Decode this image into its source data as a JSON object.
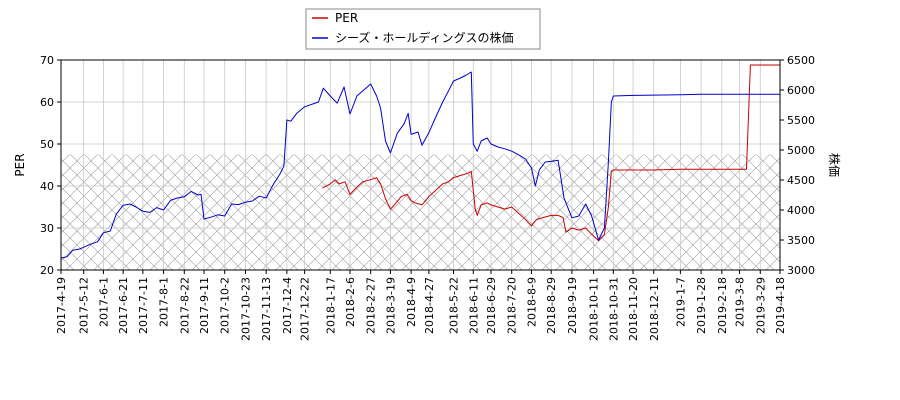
{
  "chart_data": {
    "type": "line",
    "legend": {
      "placement": "top-center",
      "entries": [
        {
          "label": "PER",
          "color": "#cc0000"
        },
        {
          "label": "シーズ・ホールディングスの株価",
          "color": "#0000cc"
        }
      ]
    },
    "ylabel_left": "PER",
    "ylabel_right": "株価",
    "ylim_left": [
      20,
      70
    ],
    "ylim_right": [
      3000,
      6500
    ],
    "yticks_left": [
      20,
      30,
      40,
      50,
      60,
      70
    ],
    "yticks_right": [
      3000,
      3500,
      4000,
      4500,
      5000,
      5500,
      6000,
      6500
    ],
    "xlim": [
      "2017-04-19",
      "2019-04-18"
    ],
    "xtick_labels": [
      "2017-4-19",
      "2017-5-12",
      "2017-6-1",
      "2017-6-21",
      "2017-7-11",
      "2017-8-1",
      "2017-8-22",
      "2017-9-11",
      "2017-10-2",
      "2017-10-23",
      "2017-11-13",
      "2017-12-4",
      "2017-12-22",
      "2018-1-17",
      "2018-2-6",
      "2018-2-27",
      "2018-3-19",
      "2018-4-9",
      "2018-4-27",
      "2018-5-22",
      "2018-6-11",
      "2018-6-29",
      "2018-7-20",
      "2018-8-9",
      "2018-8-29",
      "2018-9-19",
      "2018-10-11",
      "2018-10-31",
      "2018-11-20",
      "2018-12-11",
      "2019-1-7",
      "2019-1-28",
      "2019-2-18",
      "2019-3-8",
      "2019-3-29",
      "2019-4-18"
    ],
    "xtick_dates": [
      "2017-04-19",
      "2017-05-12",
      "2017-06-01",
      "2017-06-21",
      "2017-07-11",
      "2017-08-01",
      "2017-08-22",
      "2017-09-11",
      "2017-10-02",
      "2017-10-23",
      "2017-11-13",
      "2017-12-04",
      "2017-12-22",
      "2018-01-17",
      "2018-02-06",
      "2018-02-27",
      "2018-03-19",
      "2018-04-09",
      "2018-04-27",
      "2018-05-22",
      "2018-06-11",
      "2018-06-29",
      "2018-07-20",
      "2018-08-09",
      "2018-08-29",
      "2018-09-19",
      "2018-10-11",
      "2018-10-31",
      "2018-11-20",
      "2018-12-11",
      "2019-01-07",
      "2019-01-28",
      "2019-02-18",
      "2019-03-08",
      "2019-03-29",
      "2019-04-18"
    ],
    "grid": true,
    "hatched_band_left_axis": [
      20,
      47.5
    ],
    "series": [
      {
        "name": "PER",
        "axis": "left",
        "color": "#cc0000",
        "points": [
          [
            "2018-01-09",
            39.5
          ],
          [
            "2018-01-17",
            40.5
          ],
          [
            "2018-01-22",
            41.5
          ],
          [
            "2018-01-26",
            40.5
          ],
          [
            "2018-02-01",
            41.0
          ],
          [
            "2018-02-06",
            38.0
          ],
          [
            "2018-02-12",
            39.5
          ],
          [
            "2018-02-19",
            41.0
          ],
          [
            "2018-02-27",
            41.5
          ],
          [
            "2018-03-05",
            42.0
          ],
          [
            "2018-03-09",
            40.5
          ],
          [
            "2018-03-14",
            37.0
          ],
          [
            "2018-03-19",
            34.5
          ],
          [
            "2018-03-23",
            35.5
          ],
          [
            "2018-03-30",
            37.5
          ],
          [
            "2018-04-05",
            38.0
          ],
          [
            "2018-04-09",
            36.5
          ],
          [
            "2018-04-13",
            36.0
          ],
          [
            "2018-04-20",
            35.5
          ],
          [
            "2018-04-27",
            37.5
          ],
          [
            "2018-05-04",
            39.0
          ],
          [
            "2018-05-11",
            40.5
          ],
          [
            "2018-05-17",
            41.0
          ],
          [
            "2018-05-22",
            42.0
          ],
          [
            "2018-05-29",
            42.5
          ],
          [
            "2018-06-05",
            43.0
          ],
          [
            "2018-06-09",
            43.5
          ],
          [
            "2018-06-13",
            34.5
          ],
          [
            "2018-06-15",
            33.0
          ],
          [
            "2018-06-19",
            35.5
          ],
          [
            "2018-06-25",
            36.0
          ],
          [
            "2018-06-29",
            35.5
          ],
          [
            "2018-07-06",
            35.0
          ],
          [
            "2018-07-13",
            34.5
          ],
          [
            "2018-07-20",
            35.0
          ],
          [
            "2018-07-27",
            33.5
          ],
          [
            "2018-08-03",
            32.0
          ],
          [
            "2018-08-09",
            30.5
          ],
          [
            "2018-08-14",
            32.0
          ],
          [
            "2018-08-21",
            32.5
          ],
          [
            "2018-08-29",
            33.0
          ],
          [
            "2018-09-05",
            33.0
          ],
          [
            "2018-09-10",
            32.5
          ],
          [
            "2018-09-13",
            29.0
          ],
          [
            "2018-09-19",
            30.0
          ],
          [
            "2018-09-26",
            29.5
          ],
          [
            "2018-10-03",
            30.0
          ],
          [
            "2018-10-09",
            28.5
          ],
          [
            "2018-10-16",
            27.0
          ],
          [
            "2018-10-22",
            28.5
          ],
          [
            "2018-10-26",
            35.0
          ],
          [
            "2018-10-29",
            43.5
          ],
          [
            "2018-10-31",
            43.8
          ],
          [
            "2018-11-20",
            43.8
          ],
          [
            "2018-12-11",
            43.8
          ],
          [
            "2019-01-07",
            44.0
          ],
          [
            "2019-01-28",
            44.0
          ],
          [
            "2019-02-18",
            44.0
          ],
          [
            "2019-03-08",
            44.0
          ],
          [
            "2019-03-15",
            44.0
          ],
          [
            "2019-03-19",
            68.8
          ],
          [
            "2019-03-29",
            68.8
          ],
          [
            "2019-04-18",
            68.8
          ]
        ]
      },
      {
        "name": "シーズ・ホールディングスの株価",
        "axis": "right",
        "color": "#0000cc",
        "points": [
          [
            "2017-04-19",
            3200
          ],
          [
            "2017-04-25",
            3220
          ],
          [
            "2017-05-01",
            3330
          ],
          [
            "2017-05-08",
            3350
          ],
          [
            "2017-05-12",
            3380
          ],
          [
            "2017-05-19",
            3430
          ],
          [
            "2017-05-26",
            3470
          ],
          [
            "2017-06-01",
            3620
          ],
          [
            "2017-06-08",
            3650
          ],
          [
            "2017-06-14",
            3930
          ],
          [
            "2017-06-21",
            4080
          ],
          [
            "2017-06-28",
            4100
          ],
          [
            "2017-07-04",
            4050
          ],
          [
            "2017-07-11",
            3980
          ],
          [
            "2017-07-18",
            3960
          ],
          [
            "2017-07-25",
            4040
          ],
          [
            "2017-08-01",
            4000
          ],
          [
            "2017-08-08",
            4160
          ],
          [
            "2017-08-15",
            4200
          ],
          [
            "2017-08-22",
            4220
          ],
          [
            "2017-08-29",
            4310
          ],
          [
            "2017-09-05",
            4250
          ],
          [
            "2017-09-08",
            4260
          ],
          [
            "2017-09-11",
            3850
          ],
          [
            "2017-09-18",
            3880
          ],
          [
            "2017-09-25",
            3920
          ],
          [
            "2017-10-02",
            3900
          ],
          [
            "2017-10-09",
            4100
          ],
          [
            "2017-10-16",
            4090
          ],
          [
            "2017-10-23",
            4130
          ],
          [
            "2017-10-30",
            4150
          ],
          [
            "2017-11-06",
            4230
          ],
          [
            "2017-11-13",
            4200
          ],
          [
            "2017-11-20",
            4420
          ],
          [
            "2017-11-27",
            4600
          ],
          [
            "2017-12-01",
            4730
          ],
          [
            "2017-12-04",
            5500
          ],
          [
            "2017-12-08",
            5480
          ],
          [
            "2017-12-14",
            5610
          ],
          [
            "2017-12-22",
            5720
          ],
          [
            "2018-01-05",
            5800
          ],
          [
            "2018-01-10",
            6030
          ],
          [
            "2018-01-17",
            5900
          ],
          [
            "2018-01-24",
            5780
          ],
          [
            "2018-01-31",
            6050
          ],
          [
            "2018-02-06",
            5600
          ],
          [
            "2018-02-13",
            5900
          ],
          [
            "2018-02-20",
            6000
          ],
          [
            "2018-02-27",
            6100
          ],
          [
            "2018-03-05",
            5900
          ],
          [
            "2018-03-09",
            5700
          ],
          [
            "2018-03-14",
            5150
          ],
          [
            "2018-03-19",
            4950
          ],
          [
            "2018-03-26",
            5280
          ],
          [
            "2018-04-02",
            5440
          ],
          [
            "2018-04-06",
            5610
          ],
          [
            "2018-04-09",
            5260
          ],
          [
            "2018-04-16",
            5300
          ],
          [
            "2018-04-20",
            5080
          ],
          [
            "2018-04-27",
            5290
          ],
          [
            "2018-05-04",
            5550
          ],
          [
            "2018-05-11",
            5800
          ],
          [
            "2018-05-18",
            6020
          ],
          [
            "2018-05-22",
            6150
          ],
          [
            "2018-05-29",
            6200
          ],
          [
            "2018-06-04",
            6250
          ],
          [
            "2018-06-09",
            6300
          ],
          [
            "2018-06-11",
            5100
          ],
          [
            "2018-06-15",
            4980
          ],
          [
            "2018-06-19",
            5150
          ],
          [
            "2018-06-25",
            5200
          ],
          [
            "2018-06-29",
            5100
          ],
          [
            "2018-07-06",
            5050
          ],
          [
            "2018-07-13",
            5020
          ],
          [
            "2018-07-20",
            4980
          ],
          [
            "2018-07-27",
            4920
          ],
          [
            "2018-08-03",
            4850
          ],
          [
            "2018-08-09",
            4700
          ],
          [
            "2018-08-13",
            4400
          ],
          [
            "2018-08-17",
            4670
          ],
          [
            "2018-08-23",
            4800
          ],
          [
            "2018-08-29",
            4810
          ],
          [
            "2018-09-05",
            4830
          ],
          [
            "2018-09-11",
            4200
          ],
          [
            "2018-09-19",
            3870
          ],
          [
            "2018-09-26",
            3900
          ],
          [
            "2018-10-03",
            4100
          ],
          [
            "2018-10-09",
            3900
          ],
          [
            "2018-10-16",
            3500
          ],
          [
            "2018-10-22",
            3700
          ],
          [
            "2018-10-26",
            4800
          ],
          [
            "2018-10-29",
            5800
          ],
          [
            "2018-10-31",
            5900
          ],
          [
            "2018-11-20",
            5910
          ],
          [
            "2018-12-11",
            5915
          ],
          [
            "2019-01-07",
            5920
          ],
          [
            "2019-01-28",
            5930
          ],
          [
            "2019-02-18",
            5930
          ],
          [
            "2019-03-08",
            5930
          ],
          [
            "2019-03-29",
            5930
          ],
          [
            "2019-04-18",
            5930
          ]
        ]
      }
    ]
  }
}
